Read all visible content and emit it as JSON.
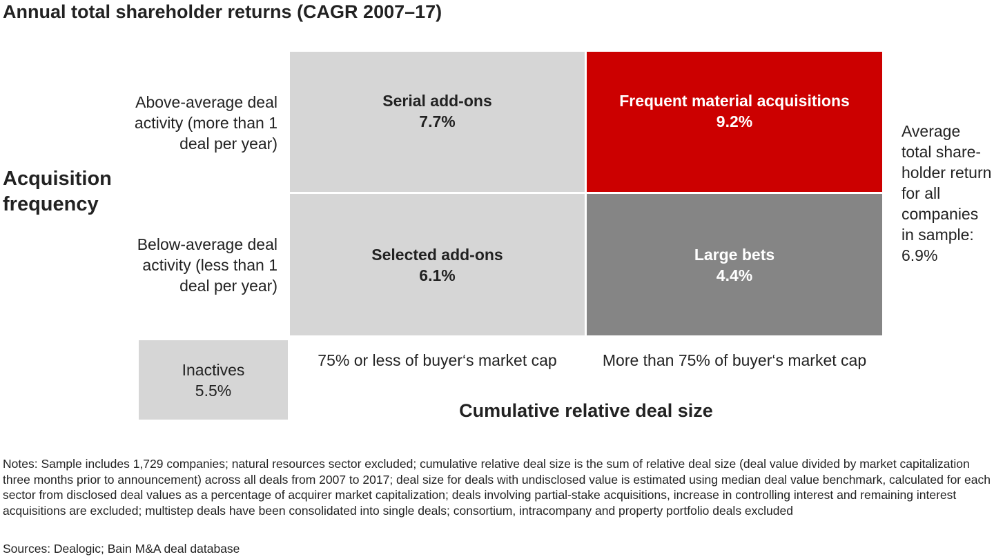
{
  "title": "Annual total shareholder returns (CAGR 2007–17)",
  "y_axis_label": "Acquisition frequency",
  "x_axis_label": "Cumulative relative deal size",
  "rows": [
    {
      "label": "Above-average deal activity (more than 1 deal per year)"
    },
    {
      "label": "Below-average deal activity (less than 1 deal per year)"
    }
  ],
  "columns": [
    {
      "label": "75% or less of buyer‘s market cap"
    },
    {
      "label": "More than 75% of buyer‘s market cap"
    }
  ],
  "cells": {
    "top_left": {
      "label": "Serial add-ons",
      "value": "7.7%",
      "color": "#d6d6d6"
    },
    "top_right": {
      "label": "Frequent material acquisitions",
      "value": "9.2%",
      "color": "#cc0000"
    },
    "bottom_left": {
      "label": "Selected add-ons",
      "value": "6.1%",
      "color": "#d6d6d6"
    },
    "bottom_right": {
      "label": "Large bets",
      "value": "4.4%",
      "color": "#858585"
    }
  },
  "inactives": {
    "label": "Inactives",
    "value": "5.5%"
  },
  "average_note": "Average total share-holder return for all companies in sample: 6.9%",
  "notes": "Notes: Sample includes 1,729 companies; natural resources sector excluded; cumulative relative deal size is the sum of relative deal size (deal value divided by market capitalization three months prior to announcement) across all deals from 2007 to 2017; deal size for deals with undisclosed value is estimated using median deal value benchmark, calculated for each sector from disclosed deal values as a percentage of acquirer market capitalization; deals involving partial-stake acquisitions, increase in controlling interest and remaining interest acquisitions are excluded; multistep deals have been consolidated into single deals; consortium, intracompany and property portfolio deals excluded",
  "sources": "Sources: Dealogic; Bain M&A deal database"
}
